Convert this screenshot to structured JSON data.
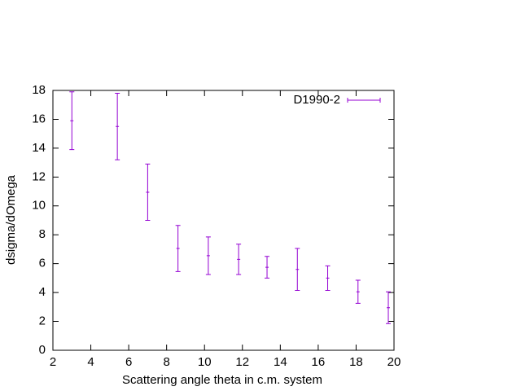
{
  "chart_data": {
    "type": "errorbar",
    "xlabel": "Scattering angle theta in c.m. system",
    "ylabel": "dsigma/dOmega",
    "xlim": [
      2,
      20
    ],
    "xticks": [
      2,
      4,
      6,
      8,
      10,
      12,
      14,
      16,
      18,
      20
    ],
    "ylim": [
      0,
      18
    ],
    "yticks": [
      0,
      2,
      4,
      6,
      8,
      10,
      12,
      14,
      16,
      18
    ],
    "legend": "top-right",
    "series": [
      {
        "name": "D1990-2",
        "color": "#9400d3",
        "x": [
          3.0,
          5.4,
          7.0,
          8.6,
          10.2,
          11.8,
          13.3,
          14.9,
          16.5,
          18.1,
          19.7
        ],
        "values": [
          15.9,
          15.5,
          10.95,
          7.05,
          6.55,
          6.3,
          5.75,
          5.6,
          5.0,
          4.05,
          2.95
        ],
        "errors": [
          2.0,
          2.3,
          1.95,
          1.6,
          1.3,
          1.05,
          0.75,
          1.45,
          0.85,
          0.8,
          1.1
        ]
      }
    ]
  }
}
